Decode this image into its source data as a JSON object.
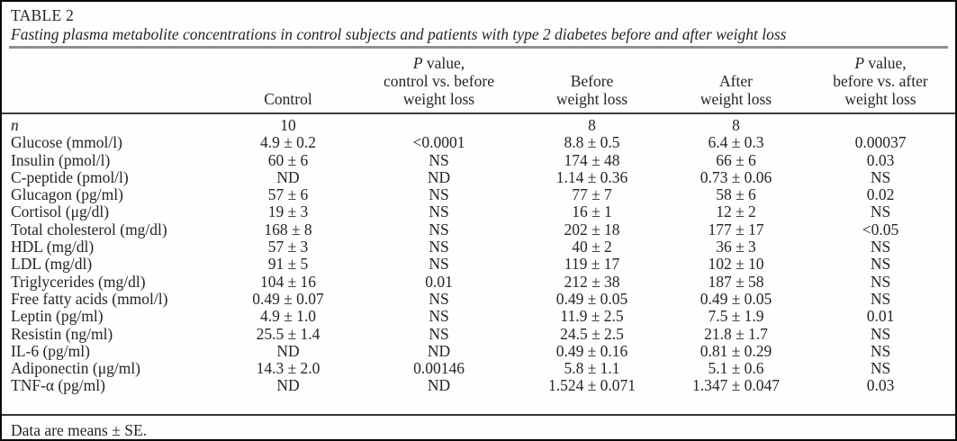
{
  "table": {
    "label": "TABLE 2",
    "caption": "Fasting plasma metabolite concentrations in control subjects and patients with type 2 diabetes before and after weight loss",
    "columns": [
      {
        "id": "metabolite",
        "align": "left",
        "lines": []
      },
      {
        "id": "control",
        "lines": [
          [
            {
              "text": "Control"
            }
          ]
        ]
      },
      {
        "id": "p-control-vs-before",
        "lines": [
          [
            {
              "text": "P",
              "italic": true
            },
            {
              "text": " value,"
            }
          ],
          [
            {
              "text": "control vs. before"
            }
          ],
          [
            {
              "text": "weight loss"
            }
          ]
        ]
      },
      {
        "id": "before-weight-loss",
        "lines": [
          [
            {
              "text": "Before"
            }
          ],
          [
            {
              "text": "weight loss"
            }
          ]
        ]
      },
      {
        "id": "after-weight-loss",
        "lines": [
          [
            {
              "text": "After"
            }
          ],
          [
            {
              "text": "weight loss"
            }
          ]
        ]
      },
      {
        "id": "p-before-vs-after",
        "lines": [
          [
            {
              "text": "P",
              "italic": true
            },
            {
              "text": " value,"
            }
          ],
          [
            {
              "text": "before vs. after"
            }
          ],
          [
            {
              "text": "weight loss"
            }
          ]
        ]
      }
    ],
    "rows": [
      {
        "label": "n",
        "label_italic": true,
        "cells": [
          "10",
          "",
          "8",
          "8",
          ""
        ]
      },
      {
        "label": "Glucose (mmol/l)",
        "cells": [
          "4.9 ± 0.2",
          "<0.0001",
          "8.8 ± 0.5",
          "6.4 ± 0.3",
          "0.00037"
        ]
      },
      {
        "label": "Insulin (pmol/l)",
        "cells": [
          "60 ± 6",
          "NS",
          "174 ± 48",
          "66 ± 6",
          "0.03"
        ]
      },
      {
        "label": "C-peptide (pmol/l)",
        "cells": [
          "ND",
          "ND",
          "1.14 ± 0.36",
          "0.73 ± 0.06",
          "NS"
        ]
      },
      {
        "label": "Glucagon (pg/ml)",
        "cells": [
          "57 ± 6",
          "NS",
          "77 ± 7",
          "58 ± 6",
          "0.02"
        ]
      },
      {
        "label": "Cortisol (μg/dl)",
        "cells": [
          "19 ± 3",
          "NS",
          "16 ± 1",
          "12 ± 2",
          "NS"
        ]
      },
      {
        "label": "Total cholesterol (mg/dl)",
        "cells": [
          "168 ± 8",
          "NS",
          "202 ± 18",
          "177 ± 17",
          "<0.05"
        ]
      },
      {
        "label": "HDL (mg/dl)",
        "cells": [
          "57 ± 3",
          "NS",
          "40 ± 2",
          "36 ± 3",
          "NS"
        ]
      },
      {
        "label": "LDL (mg/dl)",
        "cells": [
          "91 ± 5",
          "NS",
          "119 ± 17",
          "102 ± 10",
          "NS"
        ]
      },
      {
        "label": "Triglycerides (mg/dl)",
        "cells": [
          "104 ± 16",
          "0.01",
          "212 ± 38",
          "187 ± 58",
          "NS"
        ]
      },
      {
        "label": "Free fatty acids (mmol/l)",
        "cells": [
          "0.49 ± 0.07",
          "NS",
          "0.49 ± 0.05",
          "0.49 ± 0.05",
          "NS"
        ]
      },
      {
        "label": "Leptin (pg/ml)",
        "cells": [
          "4.9 ± 1.0",
          "NS",
          "11.9 ± 2.5",
          "7.5 ± 1.9",
          "0.01"
        ]
      },
      {
        "label": "Resistin (ng/ml)",
        "cells": [
          "25.5 ± 1.4",
          "NS",
          "24.5 ± 2.5",
          "21.8 ± 1.7",
          "NS"
        ]
      },
      {
        "label": "IL-6 (pg/ml)",
        "cells": [
          "ND",
          "ND",
          "0.49 ± 0.16",
          "0.81 ± 0.29",
          "NS"
        ]
      },
      {
        "label": "Adiponectin (μg/ml)",
        "cells": [
          "14.3 ± 2.0",
          "0.00146",
          "5.8 ± 1.1",
          "5.1 ± 0.6",
          "NS"
        ]
      },
      {
        "label": "TNF-α (pg/ml)",
        "cells": [
          "ND",
          "ND",
          "1.524 ± 0.071",
          "1.347 ± 0.047",
          "0.03"
        ]
      }
    ],
    "footnote": "Data are means ± SE."
  }
}
